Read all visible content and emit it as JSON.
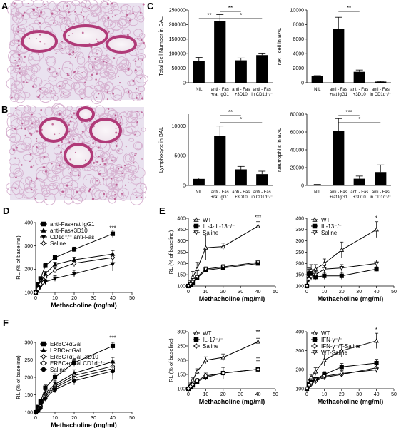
{
  "panels": {
    "A": "A",
    "B": "B",
    "C": "C",
    "D": "D",
    "E": "E",
    "F": "F"
  },
  "colors": {
    "tissue_background": "#e9e2ef",
    "tissue_stain": "#b03a78",
    "tissue_pale": "#d6b0cf",
    "airway_lumen": "#f7f2f6",
    "bar_fill": "#000000"
  },
  "chart_data": [
    {
      "id": "C1",
      "type": "bar",
      "categories": [
        "NIL",
        "anti - Fas\n+rat IgG1",
        "anti - Fas\n+3D10",
        "anti - Fas\nin CD1d⁻/⁻"
      ],
      "values": [
        75000,
        212000,
        77000,
        95000
      ],
      "errors": [
        12000,
        22000,
        8000,
        7000
      ],
      "ylabel": "Total Cell Number in BAL",
      "ylim": [
        0,
        250000
      ],
      "yticks": [
        0,
        50000,
        100000,
        150000,
        200000,
        250000
      ],
      "significance": [
        {
          "from": 0,
          "to": 1,
          "label": "**",
          "level": 1
        },
        {
          "from": 1,
          "to": 2,
          "label": "**",
          "level": 0
        },
        {
          "from": 1,
          "to": 3,
          "label": "*",
          "level": 1
        }
      ]
    },
    {
      "id": "C2",
      "type": "bar",
      "categories": [
        "NIL",
        "anti - Fas\n+rat IgG1",
        "anti - Fas\n+3D10",
        "anti - Fas\nin CD1d⁻/⁻"
      ],
      "values": [
        900,
        7400,
        1500,
        150
      ],
      "errors": [
        80,
        1600,
        250,
        60
      ],
      "ylabel": "NKT cell in BAL",
      "ylim": [
        0,
        10000
      ],
      "yticks": [
        0,
        2000,
        4000,
        6000,
        8000,
        10000
      ],
      "significance": [
        {
          "from": 1,
          "to": 2,
          "label": "**",
          "level": 0
        }
      ]
    },
    {
      "id": "C3",
      "type": "bar",
      "categories": [
        "NIL",
        "anti - Fas\n+rat IgG1",
        "anti - Fas\n+3D10",
        "anti - Fas\nin CD1d⁻/⁻"
      ],
      "values": [
        1100,
        8400,
        2700,
        1900
      ],
      "errors": [
        150,
        1600,
        500,
        500
      ],
      "ylabel": "Lymphocyte in BAL",
      "ylim": [
        0,
        12000
      ],
      "yticks": [
        0,
        5000,
        10000
      ],
      "significance": [
        {
          "from": 1,
          "to": 2,
          "label": "**",
          "level": 0
        },
        {
          "from": 1,
          "to": 3,
          "label": "*",
          "level": 1
        }
      ]
    },
    {
      "id": "C4",
      "type": "bar",
      "categories": [
        "NIL",
        "anti - Fas\n+rat IgG1",
        "anti - Fas\n+3D10",
        "anti - Fas\nin CD1d⁻/⁻"
      ],
      "values": [
        800,
        61000,
        7500,
        15000
      ],
      "errors": [
        300,
        14000,
        3000,
        8000
      ],
      "ylabel": "Neutrophils in BAL",
      "ylim": [
        0,
        80000
      ],
      "yticks": [
        0,
        20000,
        40000,
        60000,
        80000
      ],
      "significance": [
        {
          "from": 1,
          "to": 2,
          "label": "***",
          "level": 0
        },
        {
          "from": 1,
          "to": 3,
          "label": "*",
          "level": 1
        }
      ]
    },
    {
      "id": "D",
      "type": "line",
      "x": [
        0,
        1.25,
        2.5,
        5,
        10,
        20,
        40
      ],
      "xlabel": "Methacholine (mg/ml)",
      "ylabel": "RL (% of baseline)",
      "xlim": [
        0,
        50
      ],
      "xticks": [
        0,
        10,
        20,
        30,
        40,
        50
      ],
      "ylim": [
        100,
        400
      ],
      "yticks": [
        100,
        200,
        300,
        400
      ],
      "legend": "top-left",
      "annotations": [
        {
          "x": 40,
          "text": "***",
          "y": 368
        }
      ],
      "series": [
        {
          "name": "anti-Fas+rat IgG1",
          "marker": "square-filled",
          "values": [
            100,
            135,
            160,
            215,
            250,
            285,
            352
          ],
          "errors": [
            0,
            5,
            8,
            10,
            10,
            10,
            15
          ]
        },
        {
          "name": "anti-Fas+3D10",
          "marker": "triangle-filled",
          "values": [
            100,
            120,
            140,
            180,
            220,
            240,
            265
          ],
          "errors": [
            0,
            5,
            8,
            10,
            10,
            12,
            15
          ]
        },
        {
          "name": "CD1d⁻/⁻ anti-Fas",
          "marker": "triangle-down-filled",
          "values": [
            100,
            110,
            125,
            145,
            160,
            180,
            222
          ],
          "errors": [
            0,
            5,
            5,
            10,
            12,
            15,
            30
          ]
        },
        {
          "name": "Saline",
          "marker": "diamond-open",
          "values": [
            100,
            115,
            135,
            165,
            195,
            225,
            250
          ],
          "errors": [
            0,
            5,
            8,
            10,
            12,
            15,
            20
          ]
        }
      ]
    },
    {
      "id": "E1",
      "type": "line",
      "x": [
        0,
        1.25,
        2.5,
        5,
        10,
        20,
        40
      ],
      "xlabel": "Methacholine (mg/ml)",
      "ylabel": "RL (% of baseline)",
      "xlim": [
        0,
        50
      ],
      "xticks": [
        0,
        10,
        20,
        30,
        40,
        50
      ],
      "ylim": [
        100,
        400
      ],
      "yticks": [
        100,
        150,
        200,
        250,
        300,
        350,
        400
      ],
      "legend": "top-left",
      "annotations": [
        {
          "x": 40,
          "text": "***",
          "y": 395
        }
      ],
      "series": [
        {
          "name": "WT",
          "marker": "triangle-open",
          "values": [
            100,
            115,
            140,
            175,
            270,
            275,
            365
          ],
          "errors": [
            0,
            8,
            25,
            30,
            55,
            15,
            20
          ]
        },
        {
          "name": "IL-4-IL-13⁻/⁻",
          "marker": "square-filled",
          "values": [
            100,
            105,
            115,
            135,
            170,
            180,
            200
          ],
          "errors": [
            0,
            3,
            5,
            8,
            10,
            10,
            10
          ]
        },
        {
          "name": "Saline",
          "marker": "triangle-down-open",
          "values": [
            100,
            108,
            118,
            140,
            175,
            185,
            205
          ],
          "errors": [
            0,
            3,
            5,
            8,
            10,
            10,
            10
          ]
        }
      ]
    },
    {
      "id": "E2",
      "type": "line",
      "x": [
        0,
        1.25,
        2.5,
        5,
        10,
        20,
        40
      ],
      "xlabel": "Methacholine (mg/ml)",
      "ylabel": "",
      "xlim": [
        0,
        50
      ],
      "xticks": [
        0,
        10,
        20,
        30,
        40,
        50
      ],
      "ylim": [
        100,
        400
      ],
      "yticks": [
        100,
        150,
        200,
        250,
        300,
        350,
        400
      ],
      "legend": "top-left",
      "annotations": [
        {
          "x": 40,
          "text": "*",
          "y": 392
        }
      ],
      "series": [
        {
          "name": "WT",
          "marker": "triangle-open",
          "values": [
            100,
            160,
            170,
            175,
            200,
            260,
            350
          ],
          "errors": [
            0,
            20,
            25,
            20,
            20,
            35,
            35
          ]
        },
        {
          "name": "IL-13⁻/⁻",
          "marker": "square-filled",
          "values": [
            100,
            155,
            150,
            140,
            145,
            145,
            175
          ],
          "errors": [
            0,
            20,
            15,
            15,
            15,
            15,
            10
          ]
        },
        {
          "name": "Saline",
          "marker": "triangle-down-open",
          "values": [
            100,
            130,
            140,
            150,
            175,
            180,
            200
          ],
          "errors": [
            0,
            15,
            15,
            15,
            15,
            15,
            15
          ]
        }
      ]
    },
    {
      "id": "E3",
      "type": "line",
      "x": [
        0,
        1.25,
        2.5,
        5,
        10,
        20,
        40
      ],
      "xlabel": "Methacholine (mg/ml)",
      "ylabel": "RL (% of baseline)",
      "xlim": [
        0,
        50
      ],
      "xticks": [
        0,
        10,
        20,
        30,
        40,
        50
      ],
      "ylim": [
        100,
        300
      ],
      "yticks": [
        100,
        150,
        200,
        250,
        300
      ],
      "legend": "top-left",
      "annotations": [
        {
          "x": 40,
          "text": "**",
          "y": 292
        }
      ],
      "series": [
        {
          "name": "WT",
          "marker": "triangle-open",
          "values": [
            100,
            115,
            130,
            160,
            200,
            210,
            265
          ],
          "errors": [
            0,
            5,
            8,
            10,
            12,
            12,
            12
          ]
        },
        {
          "name": "IL-17⁻/⁻",
          "marker": "square-filled",
          "values": [
            100,
            105,
            112,
            125,
            140,
            155,
            168
          ],
          "errors": [
            0,
            3,
            5,
            8,
            10,
            20,
            30
          ]
        },
        {
          "name": "Saline",
          "marker": "diamond-open",
          "values": [
            100,
            108,
            115,
            128,
            145,
            155,
            168
          ],
          "errors": [
            0,
            3,
            5,
            8,
            10,
            20,
            40
          ]
        }
      ]
    },
    {
      "id": "E4",
      "type": "line",
      "x": [
        0,
        1.25,
        2.5,
        5,
        10,
        20,
        40
      ],
      "xlabel": "Methacholine (mg/ml)",
      "ylabel": "",
      "xlim": [
        0,
        50
      ],
      "xticks": [
        0,
        10,
        20,
        30,
        40,
        50
      ],
      "ylim": [
        100,
        400
      ],
      "yticks": [
        100,
        200,
        300,
        400
      ],
      "legend": "top-left",
      "annotations": [
        {
          "x": 40,
          "text": "*",
          "y": 400
        }
      ],
      "series": [
        {
          "name": "WT",
          "marker": "triangle-open",
          "values": [
            100,
            140,
            160,
            190,
            250,
            300,
            352
          ],
          "errors": [
            0,
            10,
            15,
            20,
            30,
            35,
            40
          ]
        },
        {
          "name": "IFN-γ⁻/⁻",
          "marker": "square-filled",
          "values": [
            100,
            120,
            135,
            150,
            175,
            215,
            235
          ],
          "errors": [
            0,
            8,
            10,
            12,
            15,
            18,
            20
          ]
        },
        {
          "name": "IFN-γ⁻/⁻-Saline",
          "marker": "diamond-open",
          "values": [
            100,
            115,
            125,
            140,
            160,
            175,
            210
          ],
          "errors": [
            0,
            5,
            8,
            10,
            12,
            15,
            18
          ]
        },
        {
          "name": "WT-Saline",
          "marker": "triangle-down-open",
          "values": [
            100,
            118,
            130,
            148,
            165,
            180,
            200
          ],
          "errors": [
            0,
            5,
            8,
            10,
            12,
            15,
            15
          ]
        }
      ]
    },
    {
      "id": "F",
      "type": "line",
      "x": [
        0,
        1.25,
        2.5,
        5,
        10,
        20,
        40
      ],
      "xlabel": "Methacholine (mg/ml)",
      "ylabel": "RL (% of baseline)",
      "xlim": [
        0,
        50
      ],
      "xticks": [
        0,
        10,
        20,
        30,
        40,
        50
      ],
      "ylim": [
        100,
        300
      ],
      "yticks": [
        100,
        150,
        200,
        250,
        300
      ],
      "legend": "top-left",
      "annotations": [
        {
          "x": 40,
          "text": "***",
          "y": 307
        }
      ],
      "series": [
        {
          "name": "ERBC+αGal",
          "marker": "square-filled",
          "values": [
            100,
            115,
            130,
            170,
            200,
            242,
            290
          ],
          "errors": [
            0,
            5,
            6,
            8,
            10,
            10,
            10
          ]
        },
        {
          "name": "LRBC+αGal",
          "marker": "triangle-filled",
          "values": [
            100,
            110,
            122,
            155,
            180,
            212,
            245
          ],
          "errors": [
            0,
            5,
            6,
            8,
            10,
            10,
            12
          ]
        },
        {
          "name": "ERBC+αGal+3D10",
          "marker": "diamond-open",
          "values": [
            100,
            108,
            120,
            150,
            175,
            205,
            232
          ],
          "errors": [
            0,
            5,
            6,
            8,
            10,
            10,
            15
          ]
        },
        {
          "name": "ERBC+αGal CD1d⁻/⁻",
          "marker": "circle-open",
          "values": [
            100,
            106,
            116,
            145,
            170,
            198,
            225
          ],
          "errors": [
            0,
            5,
            6,
            8,
            10,
            12,
            20
          ]
        },
        {
          "name": "Saline",
          "marker": "circle-filled",
          "values": [
            100,
            104,
            112,
            140,
            165,
            190,
            218
          ],
          "errors": [
            0,
            5,
            6,
            8,
            10,
            12,
            25
          ]
        }
      ]
    }
  ]
}
